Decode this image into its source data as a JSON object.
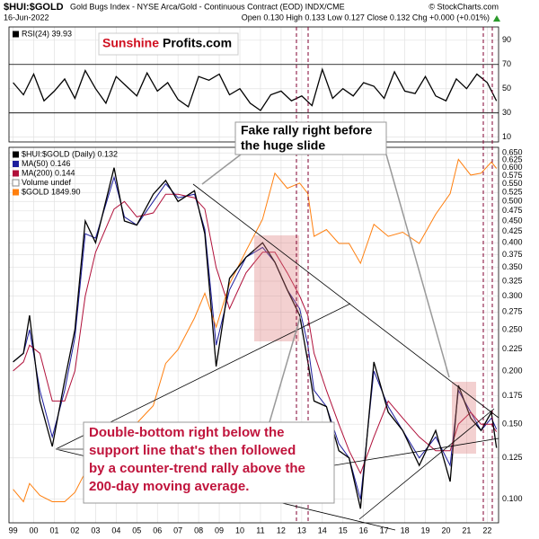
{
  "header": {
    "symbol": "$HUI:$GOLD",
    "description": "Gold Bugs Index - NYSE Arca/Gold - Continuous Contract (EOD) INDX/CME",
    "copyright": "© StockCharts.com",
    "date": "16-Jun-2022",
    "quote": "Open 0.130 High 0.133 Low 0.127 Close 0.132 Chg +0.000 (+0.01%)"
  },
  "logo": {
    "part1": "Sunshine",
    "part2": "Profits.com"
  },
  "annotations": [
    {
      "lines": [
        "Fake rally right before",
        "the huge slide"
      ]
    },
    {
      "lines": [
        "Double-bottom right below the",
        "support line that's then followed",
        "by a counter-trend rally above the",
        "200-day moving average."
      ]
    }
  ],
  "chart_data": [
    {
      "type": "line",
      "x": [
        1999.0,
        1999.5,
        2000.0,
        2000.5,
        2001.0,
        2001.5,
        2002.0,
        2002.5,
        2003.0,
        2003.5,
        2004.0,
        2004.5,
        2005.0,
        2005.5,
        2006.0,
        2006.5,
        2007.0,
        2007.5,
        2008.0,
        2008.5,
        2009.0,
        2009.5,
        2010.0,
        2010.5,
        2011.0,
        2011.5,
        2012.0,
        2012.5,
        2013.0,
        2013.5,
        2014.0,
        2014.5,
        2015.0,
        2015.5,
        2016.0,
        2016.5,
        2017.0,
        2017.5,
        2018.0,
        2018.5,
        2019.0,
        2019.5,
        2020.0,
        2020.5,
        2021.0,
        2021.5,
        2022.0,
        2022.45
      ],
      "series": [
        {
          "name": "RSI(24) 39.93",
          "color": "#000000",
          "values": [
            55,
            45,
            62,
            40,
            48,
            58,
            42,
            65,
            50,
            38,
            60,
            52,
            44,
            63,
            48,
            55,
            41,
            35,
            60,
            57,
            62,
            45,
            50,
            38,
            32,
            45,
            48,
            40,
            44,
            36,
            66,
            42,
            50,
            44,
            55,
            52,
            42,
            64,
            48,
            46,
            60,
            44,
            40,
            58,
            50,
            62,
            55,
            39.93
          ]
        }
      ],
      "xlim": [
        1998.8,
        2022.55
      ],
      "ylim": [
        6,
        101
      ],
      "yticks": [
        10,
        30,
        50,
        70,
        90
      ],
      "bands": [
        30,
        70
      ],
      "grid": true
    },
    {
      "type": "line",
      "log_scale": true,
      "grid": true,
      "x": [
        1999.0,
        1999.5,
        1999.8,
        2000.3,
        2000.9,
        2001.5,
        2002.0,
        2002.5,
        2003.0,
        2003.9,
        2004.4,
        2005.0,
        2005.8,
        2006.4,
        2007.0,
        2007.8,
        2008.3,
        2008.85,
        2009.5,
        2010.3,
        2011.1,
        2011.7,
        2012.3,
        2012.9,
        2013.3,
        2013.6,
        2014.2,
        2014.8,
        2015.3,
        2015.85,
        2016.5,
        2017.2,
        2017.9,
        2018.7,
        2019.5,
        2020.2,
        2020.6,
        2021.2,
        2021.7,
        2022.2,
        2022.45
      ],
      "series": [
        {
          "name": "$HUI:$GOLD (Daily) 0.132",
          "color": "#000000",
          "values": [
            0.21,
            0.22,
            0.27,
            0.17,
            0.133,
            0.19,
            0.25,
            0.45,
            0.4,
            0.6,
            0.45,
            0.44,
            0.52,
            0.56,
            0.5,
            0.53,
            0.42,
            0.205,
            0.33,
            0.37,
            0.4,
            0.36,
            0.31,
            0.27,
            0.21,
            0.17,
            0.165,
            0.13,
            0.125,
            0.095,
            0.21,
            0.16,
            0.145,
            0.12,
            0.145,
            0.11,
            0.185,
            0.155,
            0.145,
            0.16,
            0.132
          ]
        },
        {
          "name": "MA(50) 0.146",
          "color": "#1c1c9c",
          "values": [
            0.21,
            0.22,
            0.25,
            0.18,
            0.14,
            0.18,
            0.24,
            0.42,
            0.41,
            0.57,
            0.46,
            0.44,
            0.5,
            0.55,
            0.51,
            0.52,
            0.43,
            0.23,
            0.31,
            0.37,
            0.39,
            0.36,
            0.31,
            0.28,
            0.23,
            0.18,
            0.165,
            0.135,
            0.125,
            0.1,
            0.2,
            0.165,
            0.145,
            0.125,
            0.14,
            0.12,
            0.18,
            0.16,
            0.145,
            0.155,
            0.146
          ]
        },
        {
          "name": "MA(200) 0.144",
          "color": "#b0103a",
          "values": [
            0.2,
            0.21,
            0.23,
            0.22,
            0.17,
            0.17,
            0.2,
            0.3,
            0.38,
            0.48,
            0.5,
            0.46,
            0.47,
            0.52,
            0.52,
            0.51,
            0.48,
            0.35,
            0.28,
            0.34,
            0.38,
            0.38,
            0.34,
            0.3,
            0.27,
            0.22,
            0.18,
            0.15,
            0.13,
            0.115,
            0.14,
            0.17,
            0.155,
            0.14,
            0.13,
            0.13,
            0.15,
            0.16,
            0.15,
            0.15,
            0.144
          ]
        },
        {
          "name": "$GOLD 1849.90",
          "color": "#ff7f0e",
          "axis": "y2",
          "values": [
            290,
            270,
            300,
            280,
            270,
            270,
            285,
            320,
            350,
            400,
            390,
            425,
            470,
            600,
            650,
            780,
            900,
            740,
            950,
            1150,
            1380,
            1800,
            1650,
            1700,
            1600,
            1250,
            1300,
            1200,
            1200,
            1070,
            1340,
            1250,
            1280,
            1200,
            1420,
            1600,
            1950,
            1780,
            1800,
            1920,
            1850
          ]
        }
      ],
      "volume_label": "Volume undef",
      "xlim": [
        1998.8,
        2022.55
      ],
      "xticks": [
        {
          "value": 1999,
          "label": "99"
        },
        {
          "value": 2000,
          "label": "00"
        },
        {
          "value": 2001,
          "label": "01"
        },
        {
          "value": 2002,
          "label": "02"
        },
        {
          "value": 2003,
          "label": "03"
        },
        {
          "value": 2004,
          "label": "04"
        },
        {
          "value": 2005,
          "label": "05"
        },
        {
          "value": 2006,
          "label": "06"
        },
        {
          "value": 2007,
          "label": "07"
        },
        {
          "value": 2008,
          "label": "08"
        },
        {
          "value": 2009,
          "label": "09"
        },
        {
          "value": 2010,
          "label": "10"
        },
        {
          "value": 2011,
          "label": "11"
        },
        {
          "value": 2012,
          "label": "12"
        },
        {
          "value": 2013,
          "label": "13"
        },
        {
          "value": 2014,
          "label": "14"
        },
        {
          "value": 2015,
          "label": "15"
        },
        {
          "value": 2016,
          "label": "16"
        },
        {
          "value": 2017,
          "label": "17"
        },
        {
          "value": 2018,
          "label": "18"
        },
        {
          "value": 2019,
          "label": "19"
        },
        {
          "value": 2020,
          "label": "20"
        },
        {
          "value": 2021,
          "label": "21"
        },
        {
          "value": 2022,
          "label": "22"
        }
      ],
      "ylim": [
        0.088,
        0.67
      ],
      "yticks": [
        {
          "value": 0.1,
          "label": "0.100"
        },
        {
          "value": 0.125,
          "label": "0.125"
        },
        {
          "value": 0.15,
          "label": "0.150"
        },
        {
          "value": 0.175,
          "label": "0.175"
        },
        {
          "value": 0.2,
          "label": "0.200"
        },
        {
          "value": 0.225,
          "label": "0.225"
        },
        {
          "value": 0.25,
          "label": "0.250"
        },
        {
          "value": 0.275,
          "label": "0.275"
        },
        {
          "value": 0.3,
          "label": "0.300"
        },
        {
          "value": 0.325,
          "label": "0.325"
        },
        {
          "value": 0.35,
          "label": "0.350"
        },
        {
          "value": 0.375,
          "label": "0.375"
        },
        {
          "value": 0.4,
          "label": "0.400"
        },
        {
          "value": 0.425,
          "label": "0.425"
        },
        {
          "value": 0.45,
          "label": "0.450"
        },
        {
          "value": 0.475,
          "label": "0.475"
        },
        {
          "value": 0.5,
          "label": "0.500"
        },
        {
          "value": 0.525,
          "label": "0.525"
        },
        {
          "value": 0.55,
          "label": "0.550"
        },
        {
          "value": 0.575,
          "label": "0.575"
        },
        {
          "value": 0.6,
          "label": "0.600"
        },
        {
          "value": 0.625,
          "label": "0.625"
        },
        {
          "value": 0.65,
          "label": "0.650"
        }
      ],
      "y2lim": [
        239,
        2090
      ],
      "y2_log_scale": true
    }
  ]
}
